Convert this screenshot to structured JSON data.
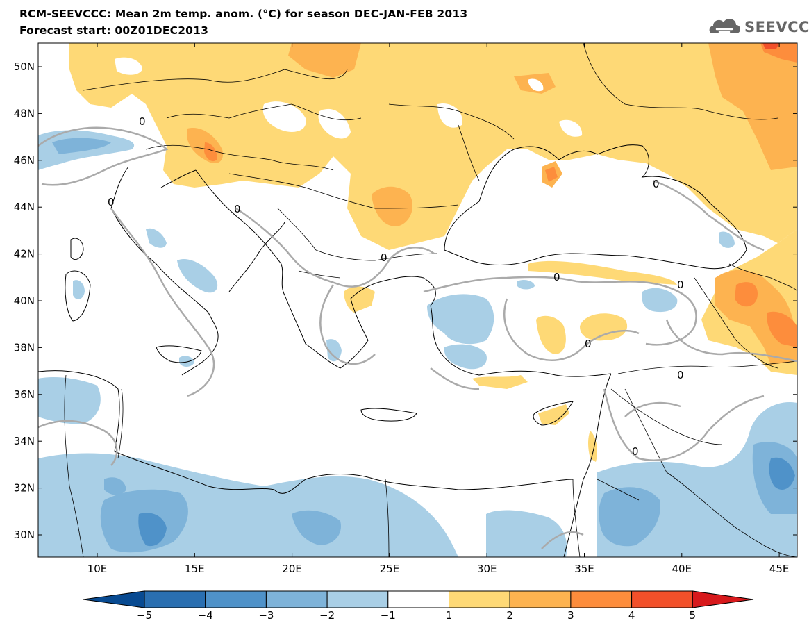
{
  "header": {
    "title": "RCM-SEEVCCC: Mean 2m temp. anom. (°C) for season DEC-JAN-FEB 2013",
    "subtitle": "Forecast start: 00Z01DEC2013",
    "logo_text": "SEEVCCC"
  },
  "map": {
    "lat_labels": [
      "50N",
      "48N",
      "46N",
      "44N",
      "42N",
      "40N",
      "38N",
      "36N",
      "34N",
      "32N",
      "30N"
    ],
    "lon_labels": [
      "10E",
      "15E",
      "20E",
      "25E",
      "30E",
      "35E",
      "40E",
      "45E"
    ],
    "contour_label": "0"
  },
  "legend": {
    "ticks": [
      "−5",
      "−4",
      "−3",
      "−2",
      "−1",
      "1",
      "2",
      "3",
      "4",
      "5"
    ],
    "colors": [
      "#084a91",
      "#2a6fb1",
      "#4f92c9",
      "#7eb3d9",
      "#a9cfe6",
      "#ffffff",
      "#fed976",
      "#fdb350",
      "#fd8d3c",
      "#f2502a",
      "#d7191c"
    ]
  },
  "colors": {
    "land_line": "#000000",
    "contour": "#aaaaaa",
    "positive_1_2": "#fed976",
    "positive_2_3": "#fdb350",
    "positive_3_4": "#fd8d3c",
    "positive_4_5": "#f2502a",
    "negative_1_2": "#a9cfe6",
    "negative_2_3": "#7eb3d9",
    "negative_3_4": "#4f92c9",
    "negative_4_5": "#2a6fb1"
  }
}
